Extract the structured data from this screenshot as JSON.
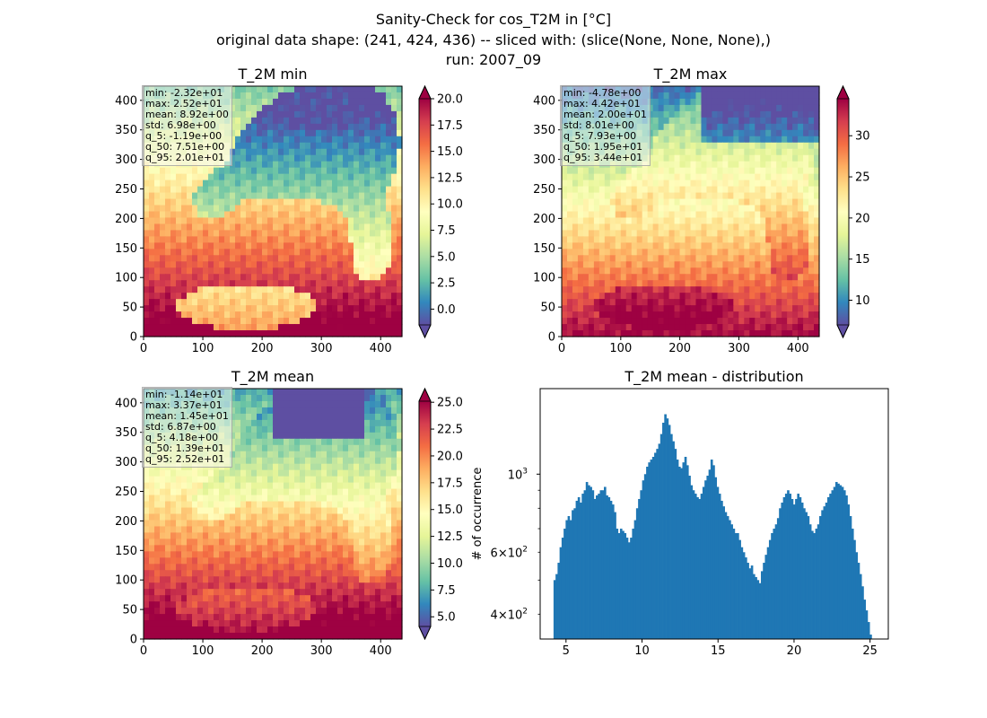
{
  "figure": {
    "suptitle_lines": [
      "Sanity-Check for cos_T2M in [°C]",
      "original data shape: (241, 424, 436) -- sliced with: (slice(None, None, None),)",
      "run: 2007_09"
    ]
  },
  "colormap": {
    "name": "Spectral_r",
    "stops": [
      "#5e4fa2",
      "#3288bd",
      "#66c2a5",
      "#abdda4",
      "#e6f598",
      "#ffffbf",
      "#fee08b",
      "#fdae61",
      "#f46d43",
      "#d53e4f",
      "#9e0142"
    ]
  },
  "chart_data": [
    {
      "type": "heatmap",
      "title": "T_2M min",
      "xlim": [
        0,
        436
      ],
      "ylim": [
        0,
        424
      ],
      "xticks": [
        "0",
        "100",
        "200",
        "300",
        "400"
      ],
      "yticks": [
        "0",
        "50",
        "100",
        "150",
        "200",
        "250",
        "300",
        "350",
        "400"
      ],
      "colorbar": {
        "range": [
          -1.5,
          20.0
        ],
        "ticks": [
          "0.0",
          "2.5",
          "5.0",
          "7.5",
          "10.0",
          "12.5",
          "15.0",
          "17.5",
          "20.0"
        ],
        "extend": "both"
      },
      "stats": [
        "min: -2.32e+01",
        "max: 2.52e+01",
        "mean: 8.92e+00",
        "std: 6.98e+00",
        "q_5: -1.19e+00",
        "q_50: 7.51e+00",
        "q_95: 2.01e+01"
      ]
    },
    {
      "type": "heatmap",
      "title": "T_2M max",
      "xlim": [
        0,
        436
      ],
      "ylim": [
        0,
        424
      ],
      "xticks": [
        "0",
        "100",
        "200",
        "300",
        "400"
      ],
      "yticks": [
        "0",
        "50",
        "100",
        "150",
        "200",
        "250",
        "300",
        "350",
        "400"
      ],
      "colorbar": {
        "range": [
          7.0,
          34.5
        ],
        "ticks": [
          "10",
          "15",
          "20",
          "25",
          "30"
        ],
        "extend": "both"
      },
      "stats": [
        "min: -4.78e+00",
        "max: 4.42e+01",
        "mean: 2.00e+01",
        "std: 8.01e+00",
        "q_5: 7.93e+00",
        "q_50: 1.95e+01",
        "q_95: 3.44e+01"
      ]
    },
    {
      "type": "heatmap",
      "title": "T_2M mean",
      "xlim": [
        0,
        436
      ],
      "ylim": [
        0,
        424
      ],
      "xticks": [
        "0",
        "100",
        "200",
        "300",
        "400"
      ],
      "yticks": [
        "0",
        "50",
        "100",
        "150",
        "200",
        "250",
        "300",
        "350",
        "400"
      ],
      "colorbar": {
        "range": [
          4.1,
          25.1
        ],
        "ticks": [
          "5.0",
          "7.5",
          "10.0",
          "12.5",
          "15.0",
          "17.5",
          "20.0",
          "22.5",
          "25.0"
        ],
        "extend": "both"
      },
      "stats": [
        "min: -1.14e+01",
        "max: 3.37e+01",
        "mean: 1.45e+01",
        "std: 6.87e+00",
        "q_5: 4.18e+00",
        "q_50: 1.39e+01",
        "q_95: 2.52e+01"
      ]
    },
    {
      "type": "bar",
      "title": "T_2M mean - distribution",
      "ylabel": "# of occurrence",
      "yscale": "log",
      "xlim": [
        3.3,
        26.2
      ],
      "ylim": [
        340,
        1750
      ],
      "xticks": [
        "5",
        "10",
        "15",
        "20",
        "25"
      ],
      "yticks_major": [
        "10^3"
      ],
      "yticks_minor": [
        "4×10^2",
        "6×10^2"
      ],
      "bin_range": [
        4.18,
        25.1
      ],
      "color": "#1f77b4",
      "values": [
        500,
        520,
        560,
        620,
        660,
        700,
        740,
        760,
        740,
        790,
        800,
        840,
        860,
        830,
        880,
        900,
        950,
        930,
        920,
        900,
        850,
        870,
        880,
        900,
        900,
        920,
        870,
        860,
        840,
        820,
        780,
        700,
        680,
        700,
        690,
        680,
        660,
        640,
        660,
        700,
        740,
        800,
        850,
        900,
        960,
        1000,
        1050,
        1080,
        1100,
        1120,
        1150,
        1180,
        1220,
        1300,
        1400,
        1480,
        1440,
        1380,
        1300,
        1240,
        1180,
        1100,
        1050,
        1040,
        1080,
        1120,
        1060,
        990,
        930,
        900,
        880,
        860,
        850,
        880,
        920,
        960,
        990,
        1030,
        1100,
        1060,
        980,
        920,
        880,
        840,
        810,
        780,
        760,
        740,
        720,
        700,
        680,
        680,
        650,
        620,
        600,
        580,
        560,
        540,
        550,
        520,
        510,
        500,
        490,
        530,
        560,
        590,
        620,
        650,
        680,
        700,
        720,
        750,
        800,
        830,
        860,
        880,
        900,
        880,
        850,
        820,
        850,
        880,
        860,
        830,
        800,
        780,
        760,
        720,
        690,
        680,
        700,
        720,
        760,
        790,
        810,
        830,
        860,
        880,
        900,
        920,
        950,
        940,
        930,
        920,
        900,
        870,
        820,
        760,
        700,
        650,
        600,
        560,
        520,
        480,
        440,
        410,
        380,
        350
      ]
    }
  ]
}
